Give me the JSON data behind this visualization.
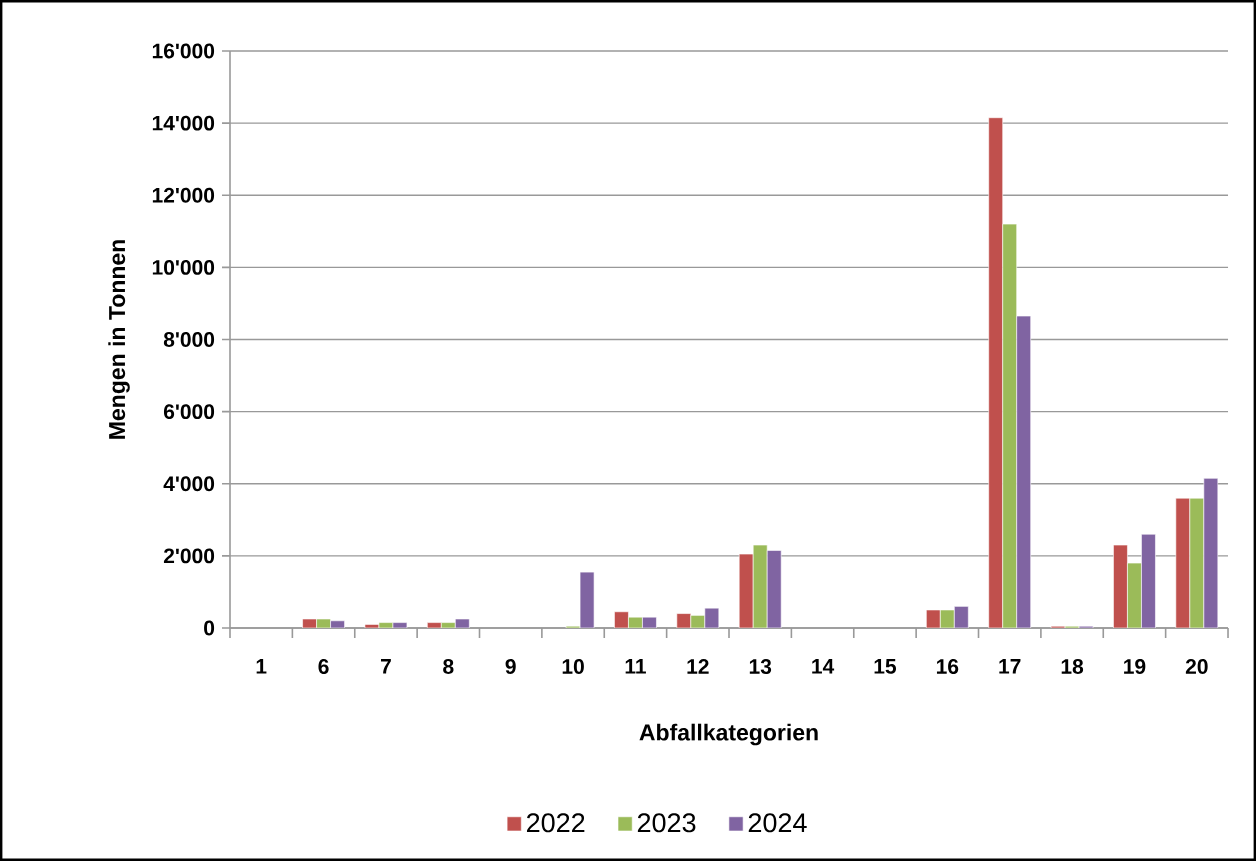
{
  "chart_data": {
    "type": "bar",
    "xlabel": "Abfallkategorien",
    "ylabel": "Mengen in Tonnen",
    "categories": [
      "1",
      "6",
      "7",
      "8",
      "9",
      "10",
      "11",
      "12",
      "13",
      "14",
      "15",
      "16",
      "17",
      "18",
      "19",
      "20"
    ],
    "series": [
      {
        "name": "2022",
        "color": "#c0504d",
        "values": [
          null,
          250,
          100,
          150,
          null,
          null,
          450,
          400,
          2050,
          null,
          null,
          500,
          14150,
          50,
          2300,
          3600
        ]
      },
      {
        "name": "2023",
        "color": "#9bbb59",
        "values": [
          null,
          250,
          150,
          150,
          null,
          50,
          300,
          350,
          2300,
          null,
          null,
          500,
          11200,
          50,
          1800,
          3600
        ]
      },
      {
        "name": "2024",
        "color": "#8064a2",
        "values": [
          null,
          200,
          150,
          250,
          null,
          1550,
          300,
          550,
          2150,
          null,
          null,
          600,
          8650,
          50,
          2600,
          4150
        ]
      }
    ],
    "ylim": [
      0,
      16000
    ],
    "yticks": [
      {
        "value": 0,
        "label": "0"
      },
      {
        "value": 2000,
        "label": "2'000"
      },
      {
        "value": 4000,
        "label": "4'000"
      },
      {
        "value": 6000,
        "label": "6'000"
      },
      {
        "value": 8000,
        "label": "8'000"
      },
      {
        "value": 10000,
        "label": "10'000"
      },
      {
        "value": 12000,
        "label": "12'000"
      },
      {
        "value": 14000,
        "label": "14'000"
      },
      {
        "value": 16000,
        "label": "16'000"
      }
    ],
    "grid": "y",
    "legend": "bottom"
  }
}
